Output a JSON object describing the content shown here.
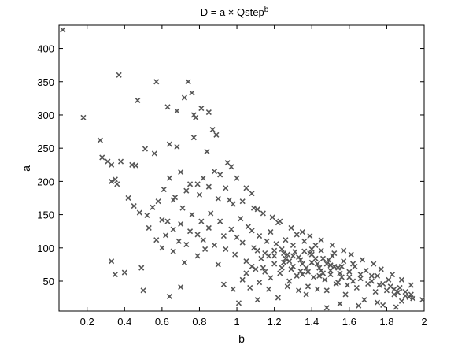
{
  "chart_data": {
    "type": "scatter",
    "title": "D = a × Qstep",
    "title_superscript": "b",
    "xlabel": "b",
    "ylabel": "a",
    "xlim": [
      0.05,
      2.0
    ],
    "ylim": [
      5,
      435
    ],
    "x_ticks": [
      "0.2",
      "0.4",
      "0.6",
      "0.8",
      "1",
      "1.2",
      "1.4",
      "1.6",
      "1.8",
      "2"
    ],
    "y_ticks": [
      "50",
      "100",
      "150",
      "200",
      "250",
      "300",
      "350",
      "400"
    ],
    "marker": "x",
    "marker_color": "#555555",
    "grid": false,
    "legend": "none",
    "points": [
      [
        0.07,
        428
      ],
      [
        0.18,
        296
      ],
      [
        0.27,
        262
      ],
      [
        0.28,
        236
      ],
      [
        0.31,
        230
      ],
      [
        0.33,
        225
      ],
      [
        0.35,
        203
      ],
      [
        0.33,
        200
      ],
      [
        0.36,
        196
      ],
      [
        0.38,
        230
      ],
      [
        0.37,
        360
      ],
      [
        0.33,
        80
      ],
      [
        0.35,
        60
      ],
      [
        0.4,
        63
      ],
      [
        0.47,
        322
      ],
      [
        0.57,
        350
      ],
      [
        0.63,
        312
      ],
      [
        0.68,
        306
      ],
      [
        0.72,
        326
      ],
      [
        0.74,
        350
      ],
      [
        0.76,
        333
      ],
      [
        0.77,
        300
      ],
      [
        0.78,
        296
      ],
      [
        0.81,
        310
      ],
      [
        0.85,
        304
      ],
      [
        0.44,
        225
      ],
      [
        0.46,
        224
      ],
      [
        0.51,
        249
      ],
      [
        0.56,
        242
      ],
      [
        0.64,
        256
      ],
      [
        0.68,
        252
      ],
      [
        0.77,
        266
      ],
      [
        0.87,
        278
      ],
      [
        0.89,
        270
      ],
      [
        0.84,
        245
      ],
      [
        0.49,
        70
      ],
      [
        0.5,
        36
      ],
      [
        0.64,
        27
      ],
      [
        0.7,
        41
      ],
      [
        0.42,
        175
      ],
      [
        0.45,
        163
      ],
      [
        0.48,
        153
      ],
      [
        0.52,
        149
      ],
      [
        0.55,
        161
      ],
      [
        0.6,
        142
      ],
      [
        0.66,
        172
      ],
      [
        0.71,
        160
      ],
      [
        0.73,
        186
      ],
      [
        0.79,
        196
      ],
      [
        0.82,
        205
      ],
      [
        0.88,
        215
      ],
      [
        0.91,
        210
      ],
      [
        0.95,
        228
      ],
      [
        0.97,
        222
      ],
      [
        1.0,
        205
      ],
      [
        1.05,
        190
      ],
      [
        1.08,
        182
      ],
      [
        0.62,
        119
      ],
      [
        0.66,
        95
      ],
      [
        0.69,
        110
      ],
      [
        0.72,
        78
      ],
      [
        0.75,
        125
      ],
      [
        0.79,
        88
      ],
      [
        0.81,
        140
      ],
      [
        0.83,
        98
      ],
      [
        0.86,
        152
      ],
      [
        0.9,
        75
      ],
      [
        0.93,
        118
      ],
      [
        0.96,
        172
      ],
      [
        0.99,
        90
      ],
      [
        1.02,
        144
      ],
      [
        1.05,
        62
      ],
      [
        1.08,
        126
      ],
      [
        1.11,
        158
      ],
      [
        1.13,
        84
      ],
      [
        1.16,
        110
      ],
      [
        1.18,
        55
      ],
      [
        1.2,
        96
      ],
      [
        1.22,
        138
      ],
      [
        1.24,
        70
      ],
      [
        1.26,
        112
      ],
      [
        1.28,
        50
      ],
      [
        1.3,
        88
      ],
      [
        1.32,
        120
      ],
      [
        1.34,
        65
      ],
      [
        1.36,
        95
      ],
      [
        1.38,
        42
      ],
      [
        1.4,
        78
      ],
      [
        1.42,
        104
      ],
      [
        1.44,
        58
      ],
      [
        1.46,
        84
      ],
      [
        1.48,
        36
      ],
      [
        1.5,
        66
      ],
      [
        1.52,
        92
      ],
      [
        1.54,
        48
      ],
      [
        1.56,
        72
      ],
      [
        1.58,
        30
      ],
      [
        1.6,
        56
      ],
      [
        1.62,
        76
      ],
      [
        1.64,
        40
      ],
      [
        1.66,
        60
      ],
      [
        1.68,
        22
      ],
      [
        1.7,
        46
      ],
      [
        1.72,
        58
      ],
      [
        1.74,
        34
      ],
      [
        1.76,
        44
      ],
      [
        1.78,
        14
      ],
      [
        1.8,
        36
      ],
      [
        1.82,
        42
      ],
      [
        1.84,
        30
      ],
      [
        1.86,
        33
      ],
      [
        1.88,
        20
      ],
      [
        1.9,
        28
      ],
      [
        1.92,
        26
      ],
      [
        1.94,
        24
      ],
      [
        1.99,
        22
      ],
      [
        1.01,
        17
      ],
      [
        1.11,
        22
      ],
      [
        1.22,
        25
      ],
      [
        1.37,
        30
      ],
      [
        1.48,
        10
      ],
      [
        1.55,
        16
      ],
      [
        1.65,
        13
      ],
      [
        1.75,
        18
      ],
      [
        1.85,
        11
      ],
      [
        0.93,
        45
      ],
      [
        0.98,
        38
      ],
      [
        1.03,
        52
      ],
      [
        1.07,
        40
      ],
      [
        1.12,
        48
      ],
      [
        1.17,
        38
      ],
      [
        1.27,
        42
      ],
      [
        1.33,
        36
      ],
      [
        1.43,
        38
      ],
      [
        0.58,
        170
      ],
      [
        0.61,
        188
      ],
      [
        0.64,
        205
      ],
      [
        0.67,
        176
      ],
      [
        0.7,
        214
      ],
      [
        0.75,
        196
      ],
      [
        0.8,
        180
      ],
      [
        0.85,
        192
      ],
      [
        0.9,
        174
      ],
      [
        0.94,
        190
      ],
      [
        0.98,
        166
      ],
      [
        1.03,
        170
      ],
      [
        1.09,
        160
      ],
      [
        1.14,
        152
      ],
      [
        1.19,
        146
      ],
      [
        1.23,
        140
      ],
      [
        1.29,
        130
      ],
      [
        1.35,
        124
      ],
      [
        1.39,
        118
      ],
      [
        1.45,
        112
      ],
      [
        1.51,
        104
      ],
      [
        1.57,
        96
      ],
      [
        1.61,
        90
      ],
      [
        1.67,
        82
      ],
      [
        1.73,
        76
      ],
      [
        1.77,
        68
      ],
      [
        1.83,
        60
      ],
      [
        1.88,
        52
      ],
      [
        1.93,
        44
      ],
      [
        0.53,
        130
      ],
      [
        0.57,
        112
      ],
      [
        0.6,
        100
      ],
      [
        0.63,
        140
      ],
      [
        0.66,
        128
      ],
      [
        0.7,
        136
      ],
      [
        0.73,
        105
      ],
      [
        0.76,
        150
      ],
      [
        0.79,
        120
      ],
      [
        0.82,
        112
      ],
      [
        0.85,
        130
      ],
      [
        0.88,
        104
      ],
      [
        0.91,
        140
      ],
      [
        0.94,
        98
      ],
      [
        0.97,
        128
      ],
      [
        1.0,
        116
      ],
      [
        1.03,
        108
      ],
      [
        1.06,
        132
      ],
      [
        1.09,
        100
      ],
      [
        1.12,
        118
      ],
      [
        1.15,
        92
      ],
      [
        1.18,
        124
      ],
      [
        1.21,
        106
      ],
      [
        1.24,
        98
      ],
      [
        1.27,
        90
      ],
      [
        1.3,
        104
      ],
      [
        1.33,
        86
      ],
      [
        1.36,
        110
      ],
      [
        1.39,
        92
      ],
      [
        1.42,
        84
      ],
      [
        1.45,
        96
      ],
      [
        1.48,
        76
      ],
      [
        1.51,
        88
      ],
      [
        1.54,
        70
      ],
      [
        1.57,
        80
      ],
      [
        1.6,
        64
      ],
      [
        1.63,
        72
      ],
      [
        1.66,
        54
      ],
      [
        1.69,
        66
      ],
      [
        1.72,
        50
      ],
      [
        1.75,
        58
      ],
      [
        1.78,
        46
      ],
      [
        1.81,
        52
      ],
      [
        1.84,
        38
      ],
      [
        1.87,
        40
      ],
      [
        1.9,
        34
      ],
      [
        1.93,
        30
      ],
      [
        1.05,
        80
      ],
      [
        1.08,
        72
      ],
      [
        1.11,
        96
      ],
      [
        1.14,
        70
      ],
      [
        1.17,
        88
      ],
      [
        1.2,
        76
      ],
      [
        1.23,
        62
      ],
      [
        1.26,
        84
      ],
      [
        1.29,
        68
      ],
      [
        1.32,
        58
      ],
      [
        1.35,
        76
      ],
      [
        1.38,
        64
      ],
      [
        1.41,
        56
      ],
      [
        1.44,
        70
      ],
      [
        1.47,
        52
      ],
      [
        1.5,
        60
      ],
      [
        1.53,
        46
      ],
      [
        1.56,
        56
      ],
      [
        1.59,
        44
      ],
      [
        1.62,
        50
      ],
      [
        1.1,
        68
      ],
      [
        1.15,
        64
      ],
      [
        1.2,
        88
      ],
      [
        1.25,
        78
      ],
      [
        1.3,
        72
      ],
      [
        1.35,
        60
      ],
      [
        1.4,
        90
      ],
      [
        1.45,
        66
      ],
      [
        1.5,
        74
      ],
      [
        1.55,
        62
      ],
      [
        1.25,
        92
      ],
      [
        1.28,
        80
      ],
      [
        1.31,
        94
      ],
      [
        1.34,
        82
      ],
      [
        1.37,
        70
      ],
      [
        1.4,
        98
      ],
      [
        1.43,
        76
      ],
      [
        1.46,
        62
      ],
      [
        1.49,
        82
      ],
      [
        1.52,
        72
      ]
    ]
  }
}
